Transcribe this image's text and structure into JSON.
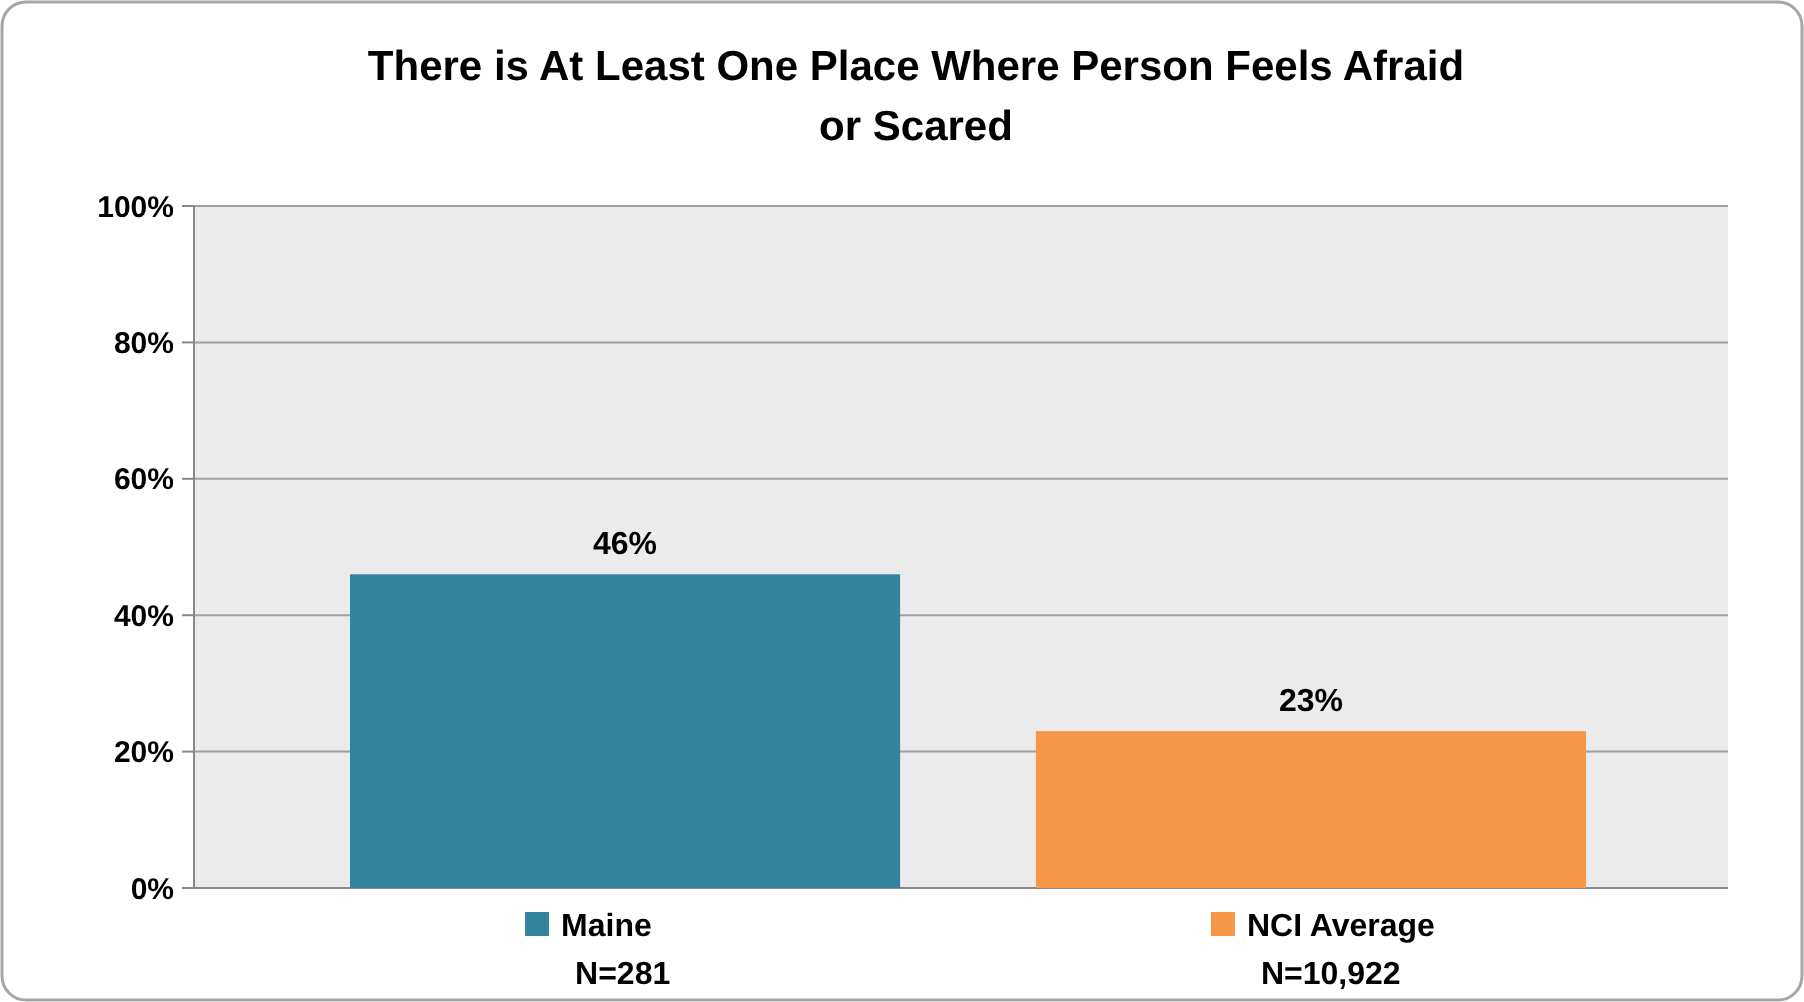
{
  "chart_data": {
    "type": "bar",
    "title": "There is At Least One Place Where Person Feels Afraid\nor Scared",
    "categories": [
      null,
      null
    ],
    "series": [
      {
        "name": "Maine\nN=281",
        "color": "#31849b",
        "values": [
          46,
          null
        ],
        "value_labels": [
          "46%",
          null
        ]
      },
      {
        "name": "NCI Average\nN=10,922",
        "color": "#f79646",
        "values": [
          null,
          23
        ],
        "value_labels": [
          null,
          "23%"
        ]
      }
    ],
    "ylim": [
      0,
      100
    ],
    "yticks": [
      {
        "value": 0,
        "label": "0%"
      },
      {
        "value": 20,
        "label": "20%"
      },
      {
        "value": 40,
        "label": "40%"
      },
      {
        "value": 60,
        "label": "60%"
      },
      {
        "value": 80,
        "label": "80%"
      },
      {
        "value": 100,
        "label": "100%"
      }
    ],
    "grid": "y",
    "legend": "bottom"
  }
}
